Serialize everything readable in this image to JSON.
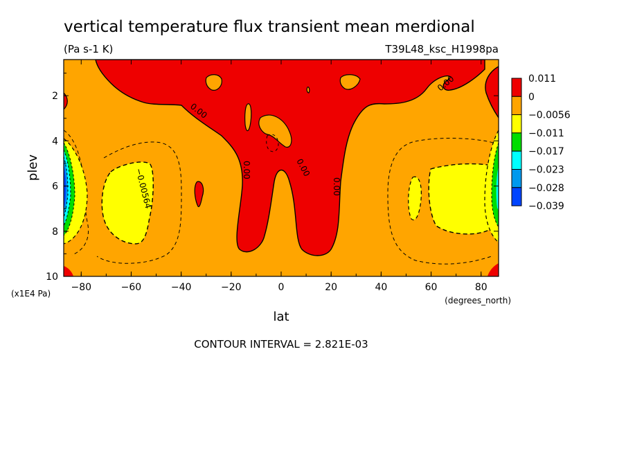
{
  "chart_data": {
    "type": "heatmap",
    "title": "vertical temperature flux transient mean merdional",
    "units": "(Pa s-1 K)",
    "dataset": "T39L48_ksc_H1998pa",
    "xlabel": "lat",
    "xunits": "(degrees_north)",
    "ylabel": "plev",
    "yunits": "(x1E4 Pa)",
    "xlim": [
      -87,
      87
    ],
    "ylim": [
      10,
      0.4
    ],
    "y_reversed": true,
    "x_ticks": [
      "-80",
      "-60",
      "-40",
      "-20",
      "0",
      "20",
      "40",
      "60",
      "80"
    ],
    "y_ticks": [
      "2",
      "4",
      "6",
      "8",
      "10"
    ],
    "footer": "CONTOUR INTERVAL = 2.821E-03",
    "legend": {
      "placement": "right",
      "levels": [
        "0.011",
        "0",
        "−0.0056",
        "−0.011",
        "−0.017",
        "−0.023",
        "−0.028",
        "−0.039"
      ],
      "colors": [
        "#ee0000",
        "#ffa500",
        "#ffff00",
        "#00dd00",
        "#00ffff",
        "#0099ee",
        "#0044ff"
      ]
    },
    "contour_labels": [
      "0.00",
      "0.00",
      "0.00",
      "0.00",
      "0.00",
      "−0.00564"
    ],
    "regions": [
      {
        "name": "upper-tropics",
        "level": "0 to 0.011",
        "color": "#ee0000"
      },
      {
        "name": "southern-midlatitude-min",
        "level": "−0.0056 to −0.011",
        "color": "#ffff00"
      },
      {
        "name": "northern-midlatitude-min",
        "level": "−0.0056 to −0.011",
        "color": "#ffff00"
      },
      {
        "name": "southern-polar-min",
        "level": "−0.011 to −0.039",
        "color": "#0044ff"
      },
      {
        "name": "northern-polar-min",
        "level": "−0.011 to −0.039",
        "color": "#00dd00"
      }
    ]
  }
}
